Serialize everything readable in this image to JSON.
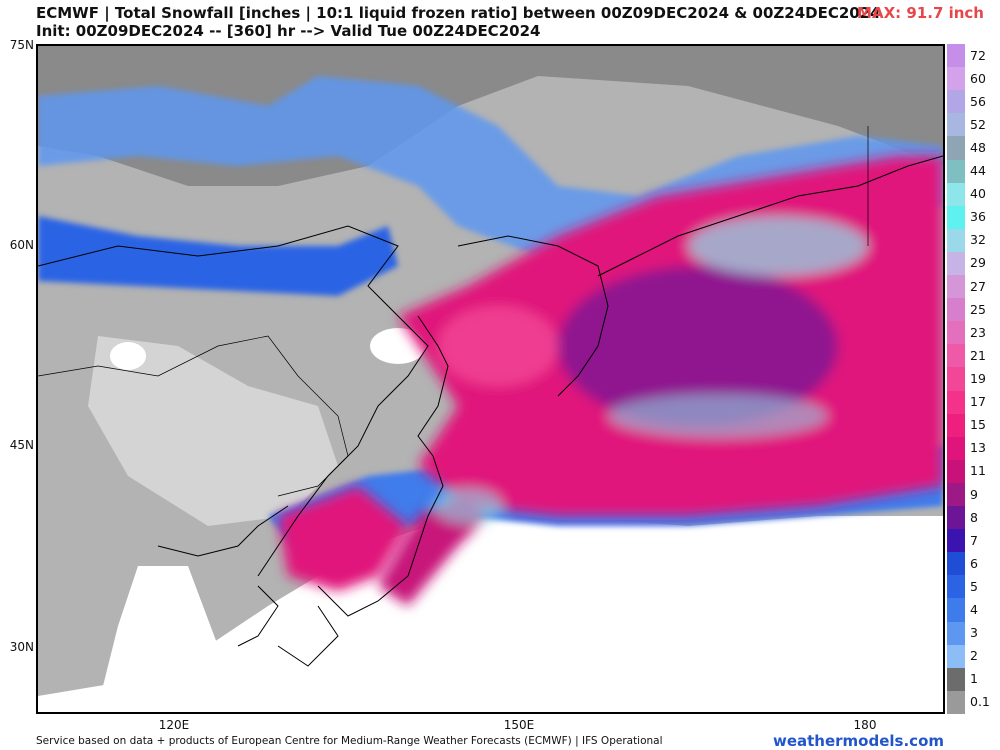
{
  "header": {
    "title_line1": "ECMWF | Total Snowfall [inches | 10:1 liquid frozen ratio] between 00Z09DEC2024 & 00Z24DEC2024",
    "title_line2": "Init: 00Z09DEC2024 -- [360] hr --> Valid Tue 00Z24DEC2024",
    "max_label": "MAX: 91.7 inch",
    "max_color": "#e8474a"
  },
  "map": {
    "lat_labels": [
      "75N",
      "60N",
      "45N",
      "30N"
    ],
    "lon_labels": [
      "120E",
      "150E",
      "180"
    ]
  },
  "colorbar": {
    "levels": [
      "72",
      "60",
      "56",
      "52",
      "48",
      "44",
      "40",
      "36",
      "32",
      "29",
      "27",
      "25",
      "23",
      "21",
      "19",
      "17",
      "15",
      "13",
      "11",
      "9",
      "8",
      "7",
      "6",
      "5",
      "4",
      "3",
      "2",
      "1",
      "0.1"
    ],
    "colors": [
      "#c58ee8",
      "#d3a2ea",
      "#b3a6e6",
      "#a7b7e2",
      "#8ea6b3",
      "#7fbfc2",
      "#8ee6ea",
      "#5ff0f0",
      "#9ad8ea",
      "#c7b4e6",
      "#d596d8",
      "#d77fcc",
      "#e36fbd",
      "#ee5aa7",
      "#f24796",
      "#f5328a",
      "#ee1f7e",
      "#e0157c",
      "#c8127a",
      "#9d1a86",
      "#6c1597",
      "#3b14b0",
      "#1f4dd6",
      "#2b63e4",
      "#3f7ceb",
      "#5e97f0",
      "#8cbdf6",
      "#6c6c6c",
      "#9a9a9a"
    ]
  },
  "footer": {
    "credit": "Service based on data + products of European Centre for Medium-Range Weather Forecasts (ECMWF) | IFS Operational",
    "brand": "weathermodels.com",
    "brand_color": "#2255cc"
  }
}
